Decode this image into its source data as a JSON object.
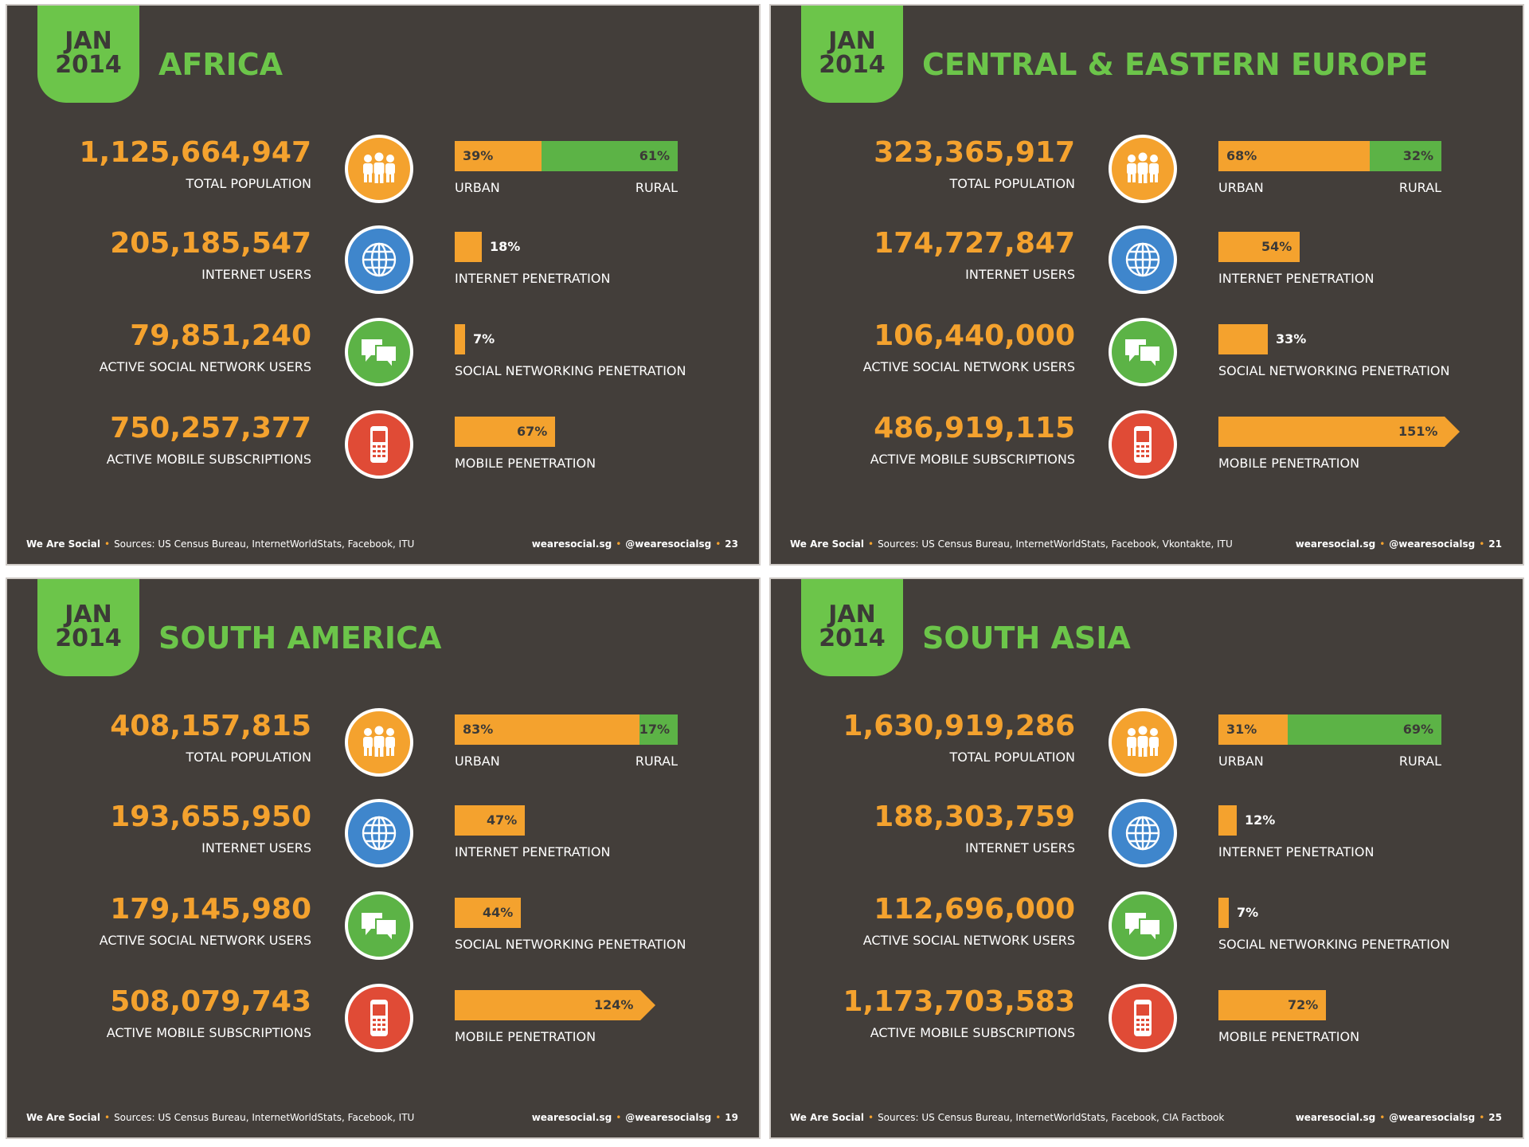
{
  "colors": {
    "background": "#433e3a",
    "green": "#6cc54a",
    "orange": "#f4a22e",
    "rural_green": "#5cb346",
    "blue": "#3f86cc",
    "red": "#e04b36",
    "text": "#ffffff"
  },
  "icons": [
    "people-icon",
    "globe-icon",
    "chat-bubbles-icon",
    "mobile-phone-icon"
  ],
  "chart_data": [
    {
      "type": "table",
      "badge_month": "JAN",
      "badge_year": "2014",
      "title": "AFRICA",
      "total_population": "1,125,664,947",
      "total_population_label": "TOTAL POPULATION",
      "urban_pct": 39,
      "rural_pct": 61,
      "urban_text": "39%",
      "rural_text": "61%",
      "urban_label": "URBAN",
      "rural_label": "RURAL",
      "internet_users": "205,185,547",
      "internet_users_label": "INTERNET USERS",
      "internet_pen": 18,
      "internet_pen_text": "18%",
      "internet_pen_label": "INTERNET PENETRATION",
      "social_users": "79,851,240",
      "social_users_label": "ACTIVE SOCIAL NETWORK USERS",
      "social_pen": 7,
      "social_pen_text": "7%",
      "social_pen_label": "SOCIAL NETWORKING PENETRATION",
      "mobile_subs": "750,257,377",
      "mobile_subs_label": "ACTIVE MOBILE SUBSCRIPTIONS",
      "mobile_pen": 67,
      "mobile_pen_text": "67%",
      "mobile_pen_label": "MOBILE PENETRATION",
      "footer_brand": "We Are Social",
      "footer_sources": "Sources: US Census Bureau, InternetWorldStats, Facebook, ITU",
      "footer_site": "wearesocial.sg",
      "footer_handle": "@wearesocialsg",
      "page": "23"
    },
    {
      "type": "table",
      "badge_month": "JAN",
      "badge_year": "2014",
      "title": "CENTRAL & EASTERN EUROPE",
      "total_population": "323,365,917",
      "total_population_label": "TOTAL POPULATION",
      "urban_pct": 68,
      "rural_pct": 32,
      "urban_text": "68%",
      "rural_text": "32%",
      "urban_label": "URBAN",
      "rural_label": "RURAL",
      "internet_users": "174,727,847",
      "internet_users_label": "INTERNET USERS",
      "internet_pen": 54,
      "internet_pen_text": "54%",
      "internet_pen_label": "INTERNET PENETRATION",
      "social_users": "106,440,000",
      "social_users_label": "ACTIVE SOCIAL NETWORK USERS",
      "social_pen": 33,
      "social_pen_text": "33%",
      "social_pen_label": "SOCIAL NETWORKING PENETRATION",
      "mobile_subs": "486,919,115",
      "mobile_subs_label": "ACTIVE MOBILE SUBSCRIPTIONS",
      "mobile_pen": 151,
      "mobile_pen_text": "151%",
      "mobile_pen_label": "MOBILE PENETRATION",
      "footer_brand": "We Are Social",
      "footer_sources": "Sources: US Census Bureau, InternetWorldStats, Facebook, Vkontakte, ITU",
      "footer_site": "wearesocial.sg",
      "footer_handle": "@wearesocialsg",
      "page": "21"
    },
    {
      "type": "table",
      "badge_month": "JAN",
      "badge_year": "2014",
      "title": "SOUTH AMERICA",
      "total_population": "408,157,815",
      "total_population_label": "TOTAL POPULATION",
      "urban_pct": 83,
      "rural_pct": 17,
      "urban_text": "83%",
      "rural_text": "17%",
      "urban_label": "URBAN",
      "rural_label": "RURAL",
      "internet_users": "193,655,950",
      "internet_users_label": "INTERNET USERS",
      "internet_pen": 47,
      "internet_pen_text": "47%",
      "internet_pen_label": "INTERNET PENETRATION",
      "social_users": "179,145,980",
      "social_users_label": "ACTIVE SOCIAL NETWORK USERS",
      "social_pen": 44,
      "social_pen_text": "44%",
      "social_pen_label": "SOCIAL NETWORKING PENETRATION",
      "mobile_subs": "508,079,743",
      "mobile_subs_label": "ACTIVE MOBILE SUBSCRIPTIONS",
      "mobile_pen": 124,
      "mobile_pen_text": "124%",
      "mobile_pen_label": "MOBILE PENETRATION",
      "footer_brand": "We Are Social",
      "footer_sources": "Sources: US Census Bureau, InternetWorldStats, Facebook, ITU",
      "footer_site": "wearesocial.sg",
      "footer_handle": "@wearesocialsg",
      "page": "19"
    },
    {
      "type": "table",
      "badge_month": "JAN",
      "badge_year": "2014",
      "title": "SOUTH ASIA",
      "total_population": "1,630,919,286",
      "total_population_label": "TOTAL POPULATION",
      "urban_pct": 31,
      "rural_pct": 69,
      "urban_text": "31%",
      "rural_text": "69%",
      "urban_label": "URBAN",
      "rural_label": "RURAL",
      "internet_users": "188,303,759",
      "internet_users_label": "INTERNET USERS",
      "internet_pen": 12,
      "internet_pen_text": "12%",
      "internet_pen_label": "INTERNET PENETRATION",
      "social_users": "112,696,000",
      "social_users_label": "ACTIVE SOCIAL NETWORK USERS",
      "social_pen": 7,
      "social_pen_text": "7%",
      "social_pen_label": "SOCIAL NETWORKING PENETRATION",
      "mobile_subs": "1,173,703,583",
      "mobile_subs_label": "ACTIVE MOBILE SUBSCRIPTIONS",
      "mobile_pen": 72,
      "mobile_pen_text": "72%",
      "mobile_pen_label": "MOBILE PENETRATION",
      "footer_brand": "We Are Social",
      "footer_sources": "Sources: US Census Bureau, InternetWorldStats, Facebook, CIA Factbook",
      "footer_site": "wearesocial.sg",
      "footer_handle": "@wearesocialsg",
      "page": "25"
    }
  ]
}
